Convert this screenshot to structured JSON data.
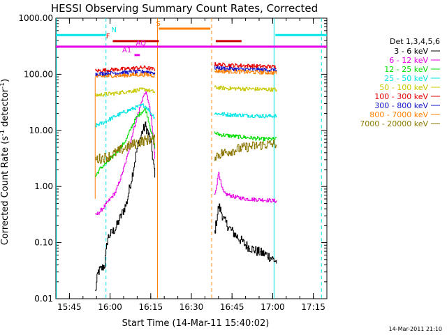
{
  "chart_data": {
    "type": "line",
    "title": "HESSI Observing Summary Count Rates, Corrected",
    "xlabel": "Start Time (14-Mar-11 15:40:02)",
    "ylabel": "Corrected Count Rate (s",
    "ylabel_sup": "-1",
    "ylabel_tail": " detector",
    "ylabel_sup2": "-1",
    "ylabel_end": ")",
    "footer": "14-Mar-2011 21:10",
    "y_scale": "log",
    "ylim": [
      0.01,
      1000
    ],
    "xlim_minutes": [
      0,
      100
    ],
    "x_ticks": [
      {
        "label": "15:45",
        "t": 5
      },
      {
        "label": "16:00",
        "t": 20
      },
      {
        "label": "16:15",
        "t": 35
      },
      {
        "label": "16:30",
        "t": 50
      },
      {
        "label": "16:45",
        "t": 65
      },
      {
        "label": "17:00",
        "t": 80
      },
      {
        "label": "17:15",
        "t": 95
      }
    ],
    "y_ticks": [
      {
        "label": "1000.00",
        "v": 1000
      },
      {
        "label": "100.00",
        "v": 100
      },
      {
        "label": "10.00",
        "v": 10
      },
      {
        "label": "1.00",
        "v": 1
      },
      {
        "label": "0.10",
        "v": 0.1
      },
      {
        "label": "0.01",
        "v": 0.01
      }
    ],
    "legend_title": "Det 1,3,4,5,6",
    "legend_placement": "right",
    "segments": [
      [
        14.5,
        36.5
      ],
      [
        58.5,
        81.5
      ]
    ],
    "series": [
      {
        "name": "3 - 6 keV",
        "color": "#000000",
        "points_a": [
          [
            14.5,
            0.013
          ],
          [
            15.5,
            0.03
          ],
          [
            17,
            0.035
          ],
          [
            18,
            0.04
          ],
          [
            19,
            0.12
          ],
          [
            20,
            0.14
          ],
          [
            22,
            0.18
          ],
          [
            24,
            0.3
          ],
          [
            26,
            0.5
          ],
          [
            28,
            1.5
          ],
          [
            30,
            5
          ],
          [
            32,
            10
          ],
          [
            33,
            12
          ],
          [
            34,
            9
          ],
          [
            35,
            6
          ],
          [
            36,
            2.5
          ],
          [
            36.5,
            1.4
          ]
        ],
        "points_b": [
          [
            58.5,
            0.15
          ],
          [
            59.5,
            0.3
          ],
          [
            60,
            0.45
          ],
          [
            61,
            0.35
          ],
          [
            62,
            0.25
          ],
          [
            64,
            0.18
          ],
          [
            66,
            0.14
          ],
          [
            70,
            0.09
          ],
          [
            74,
            0.07
          ],
          [
            78,
            0.06
          ],
          [
            81.5,
            0.045
          ]
        ]
      },
      {
        "name": "6 - 12 keV",
        "color": "#e600e6",
        "points_a": [
          [
            14.5,
            0.3
          ],
          [
            16,
            0.35
          ],
          [
            18,
            0.45
          ],
          [
            20,
            0.6
          ],
          [
            22,
            0.8
          ],
          [
            24,
            1.5
          ],
          [
            26,
            3
          ],
          [
            28,
            8
          ],
          [
            30,
            18
          ],
          [
            32,
            38
          ],
          [
            33,
            48
          ],
          [
            34,
            35
          ],
          [
            35,
            18
          ],
          [
            36,
            6
          ],
          [
            36.5,
            3
          ]
        ],
        "points_b": [
          [
            58.5,
            0.7
          ],
          [
            59.5,
            1.2
          ],
          [
            60,
            1.9
          ],
          [
            61,
            1.0
          ],
          [
            62,
            0.75
          ],
          [
            66,
            0.65
          ],
          [
            70,
            0.6
          ],
          [
            76,
            0.58
          ],
          [
            81.5,
            0.55
          ]
        ]
      },
      {
        "name": "12 - 25 keV",
        "color": "#00dd00",
        "points_a": [
          [
            14.5,
            1.5
          ],
          [
            16,
            2
          ],
          [
            18,
            2.5
          ],
          [
            20,
            3
          ],
          [
            22,
            4
          ],
          [
            24,
            5
          ],
          [
            26,
            7
          ],
          [
            28,
            12
          ],
          [
            30,
            18
          ],
          [
            32,
            22
          ],
          [
            33,
            24
          ],
          [
            34,
            16
          ],
          [
            35,
            10
          ],
          [
            36,
            6
          ],
          [
            36.5,
            5
          ]
        ],
        "points_b": [
          [
            58.5,
            9
          ],
          [
            60,
            8.5
          ],
          [
            64,
            8
          ],
          [
            70,
            7.5
          ],
          [
            76,
            7
          ],
          [
            81.5,
            7
          ]
        ]
      },
      {
        "name": "25 - 50 keV",
        "color": "#00e5e5",
        "points_a": [
          [
            14.5,
            12
          ],
          [
            16,
            13
          ],
          [
            18,
            14
          ],
          [
            20,
            16
          ],
          [
            22,
            18
          ],
          [
            24,
            20
          ],
          [
            26,
            22
          ],
          [
            28,
            24
          ],
          [
            30,
            26
          ],
          [
            32,
            28
          ],
          [
            33,
            27
          ],
          [
            34,
            24
          ],
          [
            35,
            20
          ],
          [
            36,
            18
          ],
          [
            36.5,
            17
          ]
        ],
        "points_b": [
          [
            58.5,
            20
          ],
          [
            64,
            19
          ],
          [
            70,
            18.5
          ],
          [
            76,
            18
          ],
          [
            81.5,
            18
          ]
        ]
      },
      {
        "name": "50 - 100 keV",
        "color": "#c8c800",
        "points_a": [
          [
            14.5,
            42
          ],
          [
            18,
            44
          ],
          [
            22,
            46
          ],
          [
            26,
            49
          ],
          [
            30,
            52
          ],
          [
            33,
            54
          ],
          [
            35,
            50
          ],
          [
            36.5,
            48
          ]
        ],
        "points_b": [
          [
            58.5,
            58
          ],
          [
            64,
            56
          ],
          [
            70,
            55
          ],
          [
            76,
            54
          ],
          [
            81.5,
            53
          ]
        ]
      },
      {
        "name": "100 - 300 keV",
        "color": "#e60000",
        "points_a": [
          [
            14.5,
            115
          ],
          [
            18,
            118
          ],
          [
            22,
            122
          ],
          [
            26,
            125
          ],
          [
            30,
            130
          ],
          [
            33,
            132
          ],
          [
            35,
            125
          ],
          [
            36.5,
            122
          ]
        ],
        "points_b": [
          [
            58.5,
            150
          ],
          [
            64,
            145
          ],
          [
            70,
            142
          ],
          [
            76,
            138
          ],
          [
            81.5,
            135
          ]
        ]
      },
      {
        "name": "300 - 800 keV",
        "color": "#1414c8",
        "points_a": [
          [
            14.5,
            100
          ],
          [
            18,
            103
          ],
          [
            22,
            106
          ],
          [
            26,
            108
          ],
          [
            30,
            110
          ],
          [
            33,
            112
          ],
          [
            35,
            108
          ],
          [
            36.5,
            106
          ]
        ],
        "points_b": [
          [
            58.5,
            130
          ],
          [
            64,
            125
          ],
          [
            70,
            122
          ],
          [
            76,
            120
          ],
          [
            81.5,
            118
          ]
        ]
      },
      {
        "name": "800 - 7000 keV",
        "color": "#ff7f00",
        "points_a": [
          [
            14.5,
            90
          ],
          [
            18,
            92
          ],
          [
            22,
            94
          ],
          [
            26,
            96
          ],
          [
            30,
            98
          ],
          [
            33,
            99
          ],
          [
            35,
            96
          ],
          [
            36.5,
            94
          ]
        ],
        "points_b": [
          [
            58.5,
            115
          ],
          [
            64,
            112
          ],
          [
            70,
            110
          ],
          [
            76,
            108
          ],
          [
            81.5,
            106
          ]
        ]
      },
      {
        "name": "7000 - 20000 keV",
        "color": "#8c7800",
        "points_a": [
          [
            14.5,
            3
          ],
          [
            18,
            3.3
          ],
          [
            20,
            3.5
          ],
          [
            22,
            4
          ],
          [
            24,
            4.5
          ],
          [
            26,
            5
          ],
          [
            28,
            5.5
          ],
          [
            30,
            6
          ],
          [
            32,
            6.5
          ],
          [
            34,
            6.8
          ],
          [
            36.5,
            6.8
          ]
        ],
        "points_b": [
          [
            58.5,
            3.5
          ],
          [
            62,
            4
          ],
          [
            66,
            4.5
          ],
          [
            70,
            5
          ],
          [
            76,
            5.5
          ],
          [
            81.5,
            5.8
          ]
        ]
      }
    ],
    "vertical_lines": [
      {
        "t": 0.2,
        "color": "#00e5e5",
        "style": "solid"
      },
      {
        "t": 18.5,
        "color": "#00e5e5",
        "style": "dashed"
      },
      {
        "t": 37.5,
        "color": "#ff7f00",
        "style": "solid"
      },
      {
        "t": 57.5,
        "color": "#ff7f00",
        "style": "dashed"
      },
      {
        "t": 80.5,
        "color": "#00e5e5",
        "style": "solid"
      },
      {
        "t": 98.0,
        "color": "#00e5e5",
        "style": "dashed"
      },
      {
        "t": 14.5,
        "color": "#ff7f00",
        "style": "solid",
        "v_top": 90,
        "v_bottom": 0.6
      }
    ],
    "flag_bars": [
      {
        "label": "N",
        "color": "#00e5e5",
        "t0": 0,
        "t1": 18.5,
        "v": 500,
        "label_t": 20.5
      },
      {
        "label": "S",
        "color": "#ff7f00",
        "t0": 38,
        "t1": 57,
        "v": 650,
        "label_t": 37
      },
      {
        "label": "",
        "color": "#00e5e5",
        "t0": 81,
        "t1": 100,
        "v": 500,
        "label_t": 0
      },
      {
        "label": "F",
        "color": "#cc0000",
        "t0": 21,
        "t1": 38,
        "v": 390,
        "label_t": 18.5
      },
      {
        "label": "",
        "color": "#cc0000",
        "t0": 59,
        "t1": 68.5,
        "v": 390,
        "label_t": 0
      },
      {
        "label": "",
        "color": "#e600e6",
        "t0": 0,
        "t1": 100,
        "v": 310,
        "label_t": 0
      },
      {
        "label": "AQ",
        "color": "#e600e6",
        "t0": 0,
        "t1": 0,
        "v": 290,
        "label_t": 29.5
      },
      {
        "label": "A1",
        "color": "#e600e6",
        "t0": 29,
        "t1": 31,
        "v": 220,
        "label_t": 24.5
      }
    ]
  }
}
